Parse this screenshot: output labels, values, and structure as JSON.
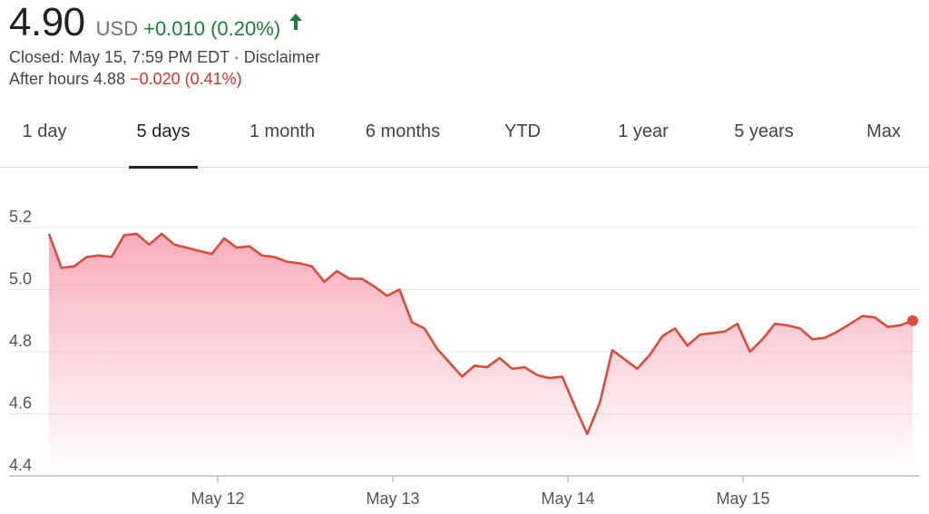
{
  "quote": {
    "price": "4.90",
    "currency": "USD",
    "change": "+0.010 (0.20%)",
    "change_color": "#188038",
    "arrow_icon": "arrow-up-icon",
    "closed_text": "Closed: May 15, 7:59 PM EDT · Disclaimer",
    "after_hours_label": "After hours 4.88",
    "after_hours_change": "−0.020 (0.41%)",
    "after_hours_color": "#d93025"
  },
  "tabs": [
    {
      "label": "1 day"
    },
    {
      "label": "5 days",
      "active": true
    },
    {
      "label": "1 month"
    },
    {
      "label": "6 months"
    },
    {
      "label": "YTD"
    },
    {
      "label": "1 year"
    },
    {
      "label": "5 years"
    },
    {
      "label": "Max"
    }
  ],
  "chart_data": {
    "type": "area",
    "title": "",
    "xlabel": "",
    "ylabel": "",
    "ylim": [
      4.4,
      5.2
    ],
    "yticks": [
      "5.2",
      "5.0",
      "4.8",
      "4.6",
      "4.4"
    ],
    "xticks": [
      "May 12",
      "May 13",
      "May 14",
      "May 15"
    ],
    "grid": true,
    "line_color": "#dd4b39",
    "fill_color": "#f7a8b8",
    "series": [
      {
        "values": [
          5.18,
          5.07,
          5.075,
          5.105,
          5.11,
          5.105,
          5.175,
          5.18,
          5.145,
          5.18,
          5.145,
          5.135,
          5.125,
          5.115,
          5.165,
          5.135,
          5.14,
          5.11,
          5.105,
          5.09,
          5.085,
          5.075,
          5.025,
          5.06,
          5.035,
          5.035,
          5.01,
          4.98,
          5.0,
          4.895,
          4.875,
          4.81,
          4.765,
          4.72,
          4.755,
          4.75,
          4.78,
          4.745,
          4.75,
          4.725,
          4.715,
          4.72,
          4.625,
          4.535,
          4.635,
          4.805,
          4.775,
          4.745,
          4.79,
          4.85,
          4.875,
          4.82,
          4.855,
          4.86,
          4.865,
          4.89,
          4.8,
          4.84,
          4.89,
          4.885,
          4.875,
          4.84,
          4.845,
          4.865,
          4.89,
          4.915,
          4.91,
          4.88,
          4.885,
          4.9
        ]
      }
    ]
  }
}
